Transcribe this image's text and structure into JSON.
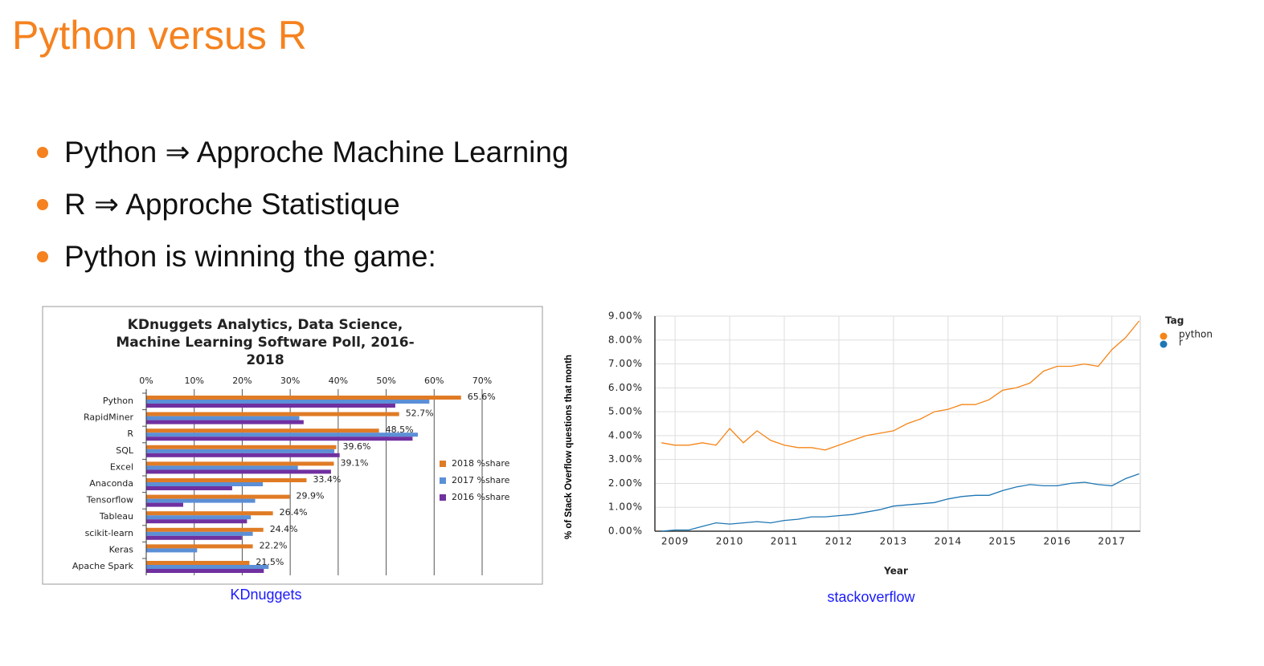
{
  "header": {
    "title": "Python versus R"
  },
  "bullets": [
    "Python ⇒ Approche Machine Learning",
    "R ⇒ Approche Statistique",
    "Python is winning the game:"
  ],
  "captions": [
    "KDnuggets",
    "stackoverflow"
  ],
  "chart_data": [
    {
      "type": "bar",
      "orientation": "horizontal",
      "title": "KDnuggets Analytics, Data Science, Machine Learning Software Poll, 2016-2018",
      "categories": [
        "Python",
        "RapidMiner",
        "R",
        "SQL",
        "Excel",
        "Anaconda",
        "Tensorflow",
        "Tableau",
        "scikit-learn",
        "Keras",
        "Apache Spark"
      ],
      "series": [
        {
          "name": "2018 %share",
          "color": "#e07b25",
          "values": [
            65.6,
            52.7,
            48.5,
            39.6,
            39.1,
            33.4,
            29.9,
            26.4,
            24.4,
            22.2,
            21.5
          ],
          "value_labels": [
            "65.6%",
            "52.7%",
            "48.5%",
            "39.6%",
            "39.1%",
            "33.4%",
            "29.9%",
            "26.4%",
            "24.4%",
            "22.2%",
            "21.5%"
          ]
        },
        {
          "name": "2017 %share",
          "color": "#5b8fd6",
          "values": [
            59.0,
            31.9,
            56.6,
            39.2,
            31.6,
            24.3,
            22.7,
            21.8,
            22.2,
            10.6,
            25.5
          ]
        },
        {
          "name": "2016 %share",
          "color": "#7030a0",
          "values": [
            51.9,
            32.8,
            55.5,
            40.3,
            38.5,
            17.9,
            7.7,
            21.0,
            19.9,
            null,
            24.5
          ]
        }
      ],
      "xlim": [
        0,
        70
      ],
      "xticks": [
        {
          "value": 0,
          "label": "0%"
        },
        {
          "value": 10,
          "label": "10%"
        },
        {
          "value": 20,
          "label": "20%"
        },
        {
          "value": 30,
          "label": "30%"
        },
        {
          "value": 40,
          "label": "40%"
        },
        {
          "value": 50,
          "label": "50%"
        },
        {
          "value": 60,
          "label": "60%"
        },
        {
          "value": 70,
          "label": "70%"
        }
      ],
      "grid": true,
      "legend": "right"
    },
    {
      "type": "line",
      "x": [
        2008.75,
        2009.0,
        2009.25,
        2009.5,
        2009.75,
        2010.0,
        2010.25,
        2010.5,
        2010.75,
        2011.0,
        2011.25,
        2011.5,
        2011.75,
        2012.0,
        2012.25,
        2012.5,
        2012.75,
        2013.0,
        2013.25,
        2013.5,
        2013.75,
        2014.0,
        2014.25,
        2014.5,
        2014.75,
        2015.0,
        2015.25,
        2015.5,
        2015.75,
        2016.0,
        2016.25,
        2016.5,
        2016.75,
        2017.0,
        2017.25,
        2017.5
      ],
      "series": [
        {
          "name": "python",
          "color": "#f58518",
          "values": [
            3.7,
            3.6,
            3.6,
            3.7,
            3.6,
            4.3,
            3.7,
            4.2,
            3.8,
            3.6,
            3.5,
            3.5,
            3.4,
            3.6,
            3.8,
            4.0,
            4.1,
            4.2,
            4.5,
            4.7,
            5.0,
            5.1,
            5.3,
            5.3,
            5.5,
            5.9,
            6.0,
            6.2,
            6.7,
            6.9,
            6.9,
            7.0,
            6.9,
            7.6,
            8.1,
            8.8
          ]
        },
        {
          "name": "r",
          "color": "#1f77b4",
          "values": [
            0.0,
            0.05,
            0.05,
            0.2,
            0.35,
            0.3,
            0.35,
            0.4,
            0.35,
            0.45,
            0.5,
            0.6,
            0.6,
            0.65,
            0.7,
            0.8,
            0.9,
            1.05,
            1.1,
            1.15,
            1.2,
            1.35,
            1.45,
            1.5,
            1.5,
            1.7,
            1.85,
            1.95,
            1.9,
            1.9,
            2.0,
            2.05,
            1.95,
            1.9,
            2.2,
            2.4
          ]
        }
      ],
      "xlim": [
        2008.63,
        2017.52
      ],
      "xticks": [
        2009,
        2010,
        2011,
        2012,
        2013,
        2014,
        2015,
        2016,
        2017
      ],
      "ylim": [
        0,
        9
      ],
      "yticks": [
        {
          "value": 0,
          "label": "0.00%"
        },
        {
          "value": 1,
          "label": "1.00%"
        },
        {
          "value": 2,
          "label": "2.00%"
        },
        {
          "value": 3,
          "label": "3.00%"
        },
        {
          "value": 4,
          "label": "4.00%"
        },
        {
          "value": 5,
          "label": "5.00%"
        },
        {
          "value": 6,
          "label": "6.00%"
        },
        {
          "value": 7,
          "label": "7.00%"
        },
        {
          "value": 8,
          "label": "8.00%"
        },
        {
          "value": 9,
          "label": "9.00%"
        }
      ],
      "xlabel": "Year",
      "ylabel": "% of Stack Overflow questions that month",
      "legend_title": "Tag",
      "grid": true
    }
  ]
}
